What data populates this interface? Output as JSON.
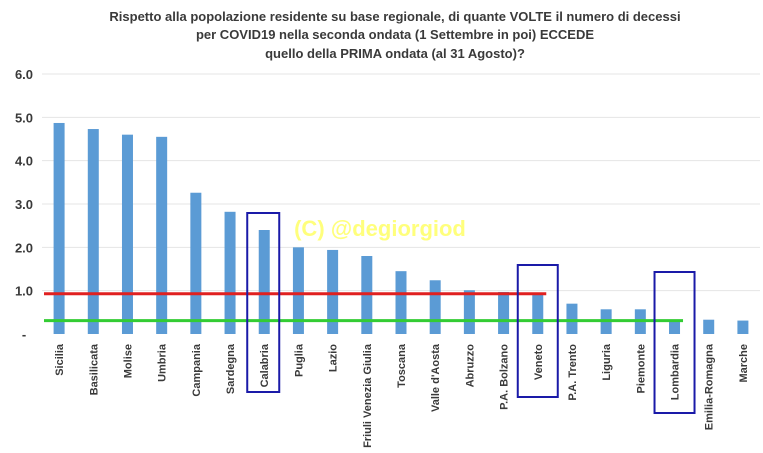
{
  "chart_data": {
    "type": "bar",
    "title_lines": [
      "Rispetto alla popolazione residente su base regionale, di quante VOLTE il  numero di decessi",
      "per COVID19 nella seconda ondata (1 Settembre in poi) ECCEDE",
      "quello della PRIMA ondata (al 31 Agosto)?"
    ],
    "categories": [
      "Sicilia",
      "Basilicata",
      "Molise",
      "Umbria",
      "Campania",
      "Sardegna",
      "Calabria",
      "Puglia",
      "Lazio",
      "Friuli Venezia Giulia",
      "Toscana",
      "Valle d'Aosta",
      "Abruzzo",
      "P.A. Bolzano",
      "Veneto",
      "P.A. Trento",
      "Liguria",
      "Piemonte",
      "Lombardia",
      "Emilia-Romagna",
      "Marche"
    ],
    "values": [
      4.87,
      4.73,
      4.6,
      4.55,
      3.26,
      2.82,
      2.4,
      2.0,
      1.94,
      1.8,
      1.45,
      1.24,
      1.01,
      0.97,
      0.92,
      0.7,
      0.57,
      0.57,
      0.33,
      0.33,
      0.31
    ],
    "y_ticks": [
      "-",
      "1.0",
      "2.0",
      "3.0",
      "4.0",
      "5.0",
      "6.0"
    ],
    "ylim": [
      0,
      6
    ],
    "bar_color": "#5b9bd5",
    "reference_lines": [
      {
        "value": 0.93,
        "color": "#e02020",
        "from": "Sicilia",
        "to": "Veneto"
      },
      {
        "value": 0.31,
        "color": "#33cc33",
        "from": "Sicilia",
        "to": "Lombardia"
      }
    ],
    "highlighted": [
      "Calabria",
      "Veneto",
      "Lombardia"
    ],
    "highlight_color": "#1a1aa8",
    "watermark": "(C) @degiorgiod",
    "watermark_color": "#ffff66",
    "grid": true
  }
}
